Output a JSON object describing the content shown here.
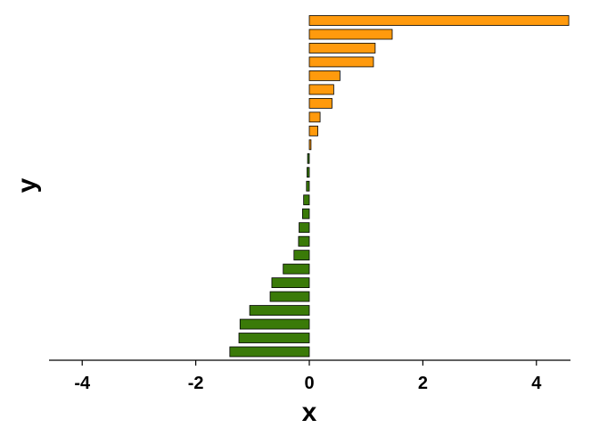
{
  "chart_data": {
    "type": "bar",
    "orientation": "horizontal",
    "xlabel": "x",
    "ylabel": "y",
    "xlim": [
      -4.6,
      4.6
    ],
    "xticks": [
      -4,
      -2,
      0,
      2,
      4
    ],
    "x_tick_labels": [
      "-4",
      "-2",
      "0",
      "2",
      "4"
    ],
    "values": [
      -1.4,
      -1.24,
      -1.22,
      -1.05,
      -0.69,
      -0.66,
      -0.46,
      -0.27,
      -0.19,
      -0.18,
      -0.12,
      -0.1,
      -0.05,
      -0.04,
      -0.03,
      0.03,
      0.15,
      0.19,
      0.4,
      0.43,
      0.54,
      1.13,
      1.16,
      1.46,
      4.57
    ],
    "colors": {
      "positive": "#ff9a0d",
      "negative": "#3a7a08",
      "outline": "#000000"
    },
    "grid": false,
    "legend": "none"
  }
}
